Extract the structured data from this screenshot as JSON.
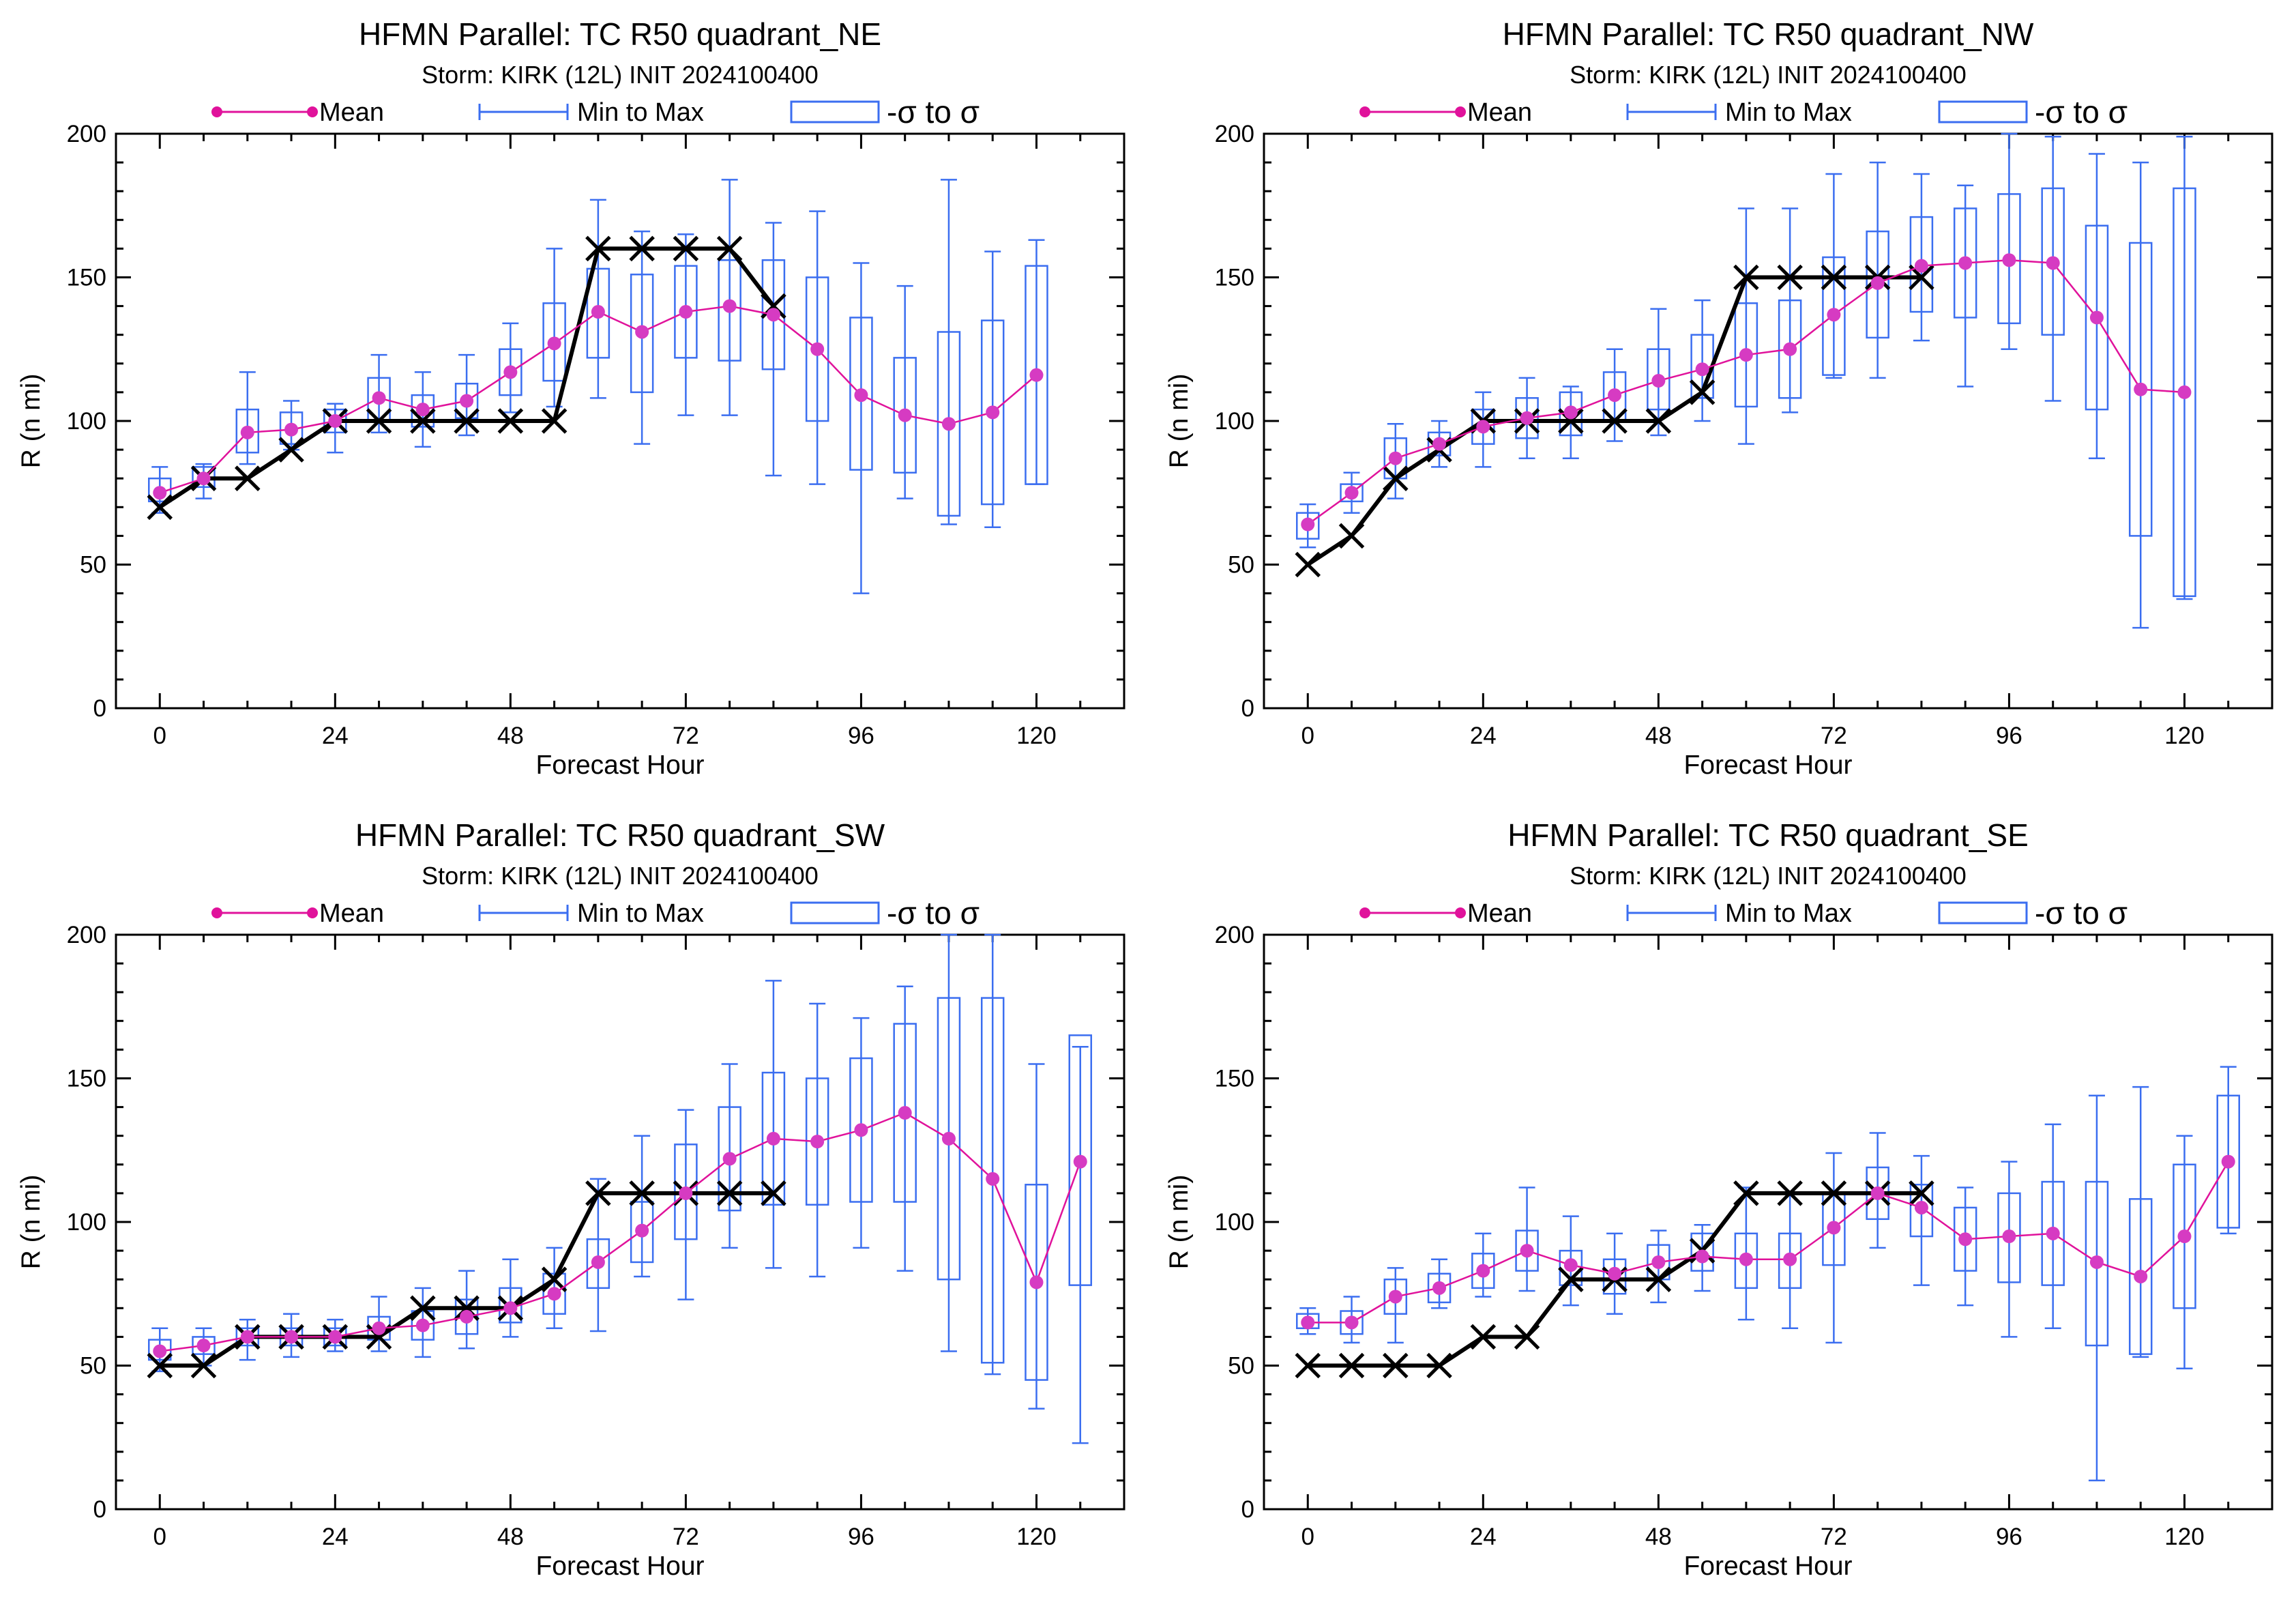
{
  "figure": {
    "legend_labels": {
      "mean": "Mean",
      "minmax": "Min to Max",
      "sigma": "-σ to σ"
    },
    "colors": {
      "mean": "#e0129b",
      "mean_point": "#d63bc2",
      "range": "#3b6ef0",
      "observed": "#000000"
    }
  },
  "chart_data": [
    {
      "type": "line",
      "title": "HFMN Parallel: TC  R50 quadrant_NE",
      "subtitle": "Storm: KIRK (12L) INIT 2024100400",
      "xlabel": "Forecast Hour",
      "ylabel": "R (n mi)",
      "xlim": [
        -6,
        132
      ],
      "ylim": [
        0,
        200
      ],
      "xticks": [
        0,
        24,
        48,
        72,
        96,
        120
      ],
      "yticks": [
        0,
        50,
        100,
        150,
        200
      ],
      "legend": "top",
      "series": [
        {
          "name": "Mean",
          "x": [
            0,
            6,
            12,
            18,
            24,
            30,
            36,
            42,
            48,
            54,
            60,
            66,
            72,
            78,
            84,
            90,
            96,
            102,
            108,
            114,
            120
          ],
          "y": [
            75,
            80,
            96,
            97,
            100,
            108,
            104,
            107,
            117,
            127,
            138,
            131,
            138,
            140,
            137,
            125,
            109,
            102,
            99,
            103,
            116
          ]
        },
        {
          "name": "Min to Max",
          "x": [
            0,
            6,
            12,
            18,
            24,
            30,
            36,
            42,
            48,
            54,
            60,
            66,
            72,
            78,
            84,
            90,
            96,
            102,
            108,
            114,
            120
          ],
          "low": [
            68,
            73,
            85,
            90,
            89,
            96,
            91,
            95,
            103,
            105,
            108,
            92,
            102,
            102,
            81,
            78,
            40,
            73,
            64,
            63,
            78
          ],
          "high": [
            84,
            85,
            117,
            107,
            106,
            123,
            117,
            123,
            134,
            160,
            177,
            166,
            165,
            184,
            169,
            173,
            155,
            147,
            184,
            159,
            163
          ]
        },
        {
          "name": "-σ to σ",
          "x": [
            0,
            6,
            12,
            18,
            24,
            30,
            36,
            42,
            48,
            54,
            60,
            66,
            72,
            78,
            84,
            90,
            96,
            102,
            108,
            114,
            120
          ],
          "low": [
            72,
            77,
            89,
            92,
            96,
            100,
            98,
            101,
            109,
            114,
            122,
            110,
            122,
            121,
            118,
            100,
            83,
            82,
            67,
            71,
            78
          ],
          "high": [
            80,
            84,
            104,
            103,
            104,
            115,
            109,
            113,
            125,
            141,
            153,
            151,
            154,
            156,
            156,
            150,
            136,
            122,
            131,
            135,
            154
          ]
        },
        {
          "name": "",
          "x": [
            0,
            6,
            12,
            18,
            24,
            30,
            36,
            42,
            48,
            54,
            60,
            66,
            72,
            78,
            84
          ],
          "y": [
            70,
            80,
            80,
            90,
            100,
            100,
            100,
            100,
            100,
            100,
            160,
            160,
            160,
            160,
            140
          ]
        }
      ]
    },
    {
      "type": "line",
      "title": "HFMN Parallel: TC  R50 quadrant_NW",
      "subtitle": "Storm: KIRK (12L) INIT 2024100400",
      "xlabel": "Forecast Hour",
      "ylabel": "R (n mi)",
      "xlim": [
        -6,
        132
      ],
      "ylim": [
        0,
        200
      ],
      "xticks": [
        0,
        24,
        48,
        72,
        96,
        120
      ],
      "yticks": [
        0,
        50,
        100,
        150,
        200
      ],
      "legend": "top",
      "series": [
        {
          "name": "Mean",
          "x": [
            0,
            6,
            12,
            18,
            24,
            30,
            36,
            42,
            48,
            54,
            60,
            66,
            72,
            78,
            84,
            90,
            96,
            102,
            108,
            114,
            120
          ],
          "y": [
            64,
            75,
            87,
            92,
            98,
            101,
            103,
            109,
            114,
            118,
            123,
            125,
            137,
            148,
            154,
            155,
            156,
            155,
            136,
            111,
            110
          ]
        },
        {
          "name": "Min to Max",
          "x": [
            0,
            6,
            12,
            18,
            24,
            30,
            36,
            42,
            48,
            54,
            60,
            66,
            72,
            78,
            84,
            90,
            96,
            102,
            108,
            114,
            120
          ],
          "low": [
            56,
            68,
            73,
            84,
            84,
            87,
            87,
            93,
            95,
            100,
            92,
            103,
            115,
            115,
            128,
            112,
            125,
            107,
            87,
            28,
            38
          ]
        },
        {
          "name": "-σ to σ",
          "x": [
            0,
            6,
            12,
            18,
            24,
            30,
            36,
            42,
            48,
            54,
            60,
            66,
            72,
            78,
            84,
            90,
            96,
            102,
            108,
            114,
            120
          ],
          "low": [
            59,
            72,
            80,
            88,
            92,
            94,
            95,
            100,
            104,
            108,
            105,
            108,
            116,
            129,
            138,
            136,
            134,
            130,
            104,
            60,
            39
          ],
          "high": [
            68,
            78,
            94,
            96,
            104,
            108,
            110,
            117,
            125,
            130,
            141,
            142,
            157,
            166,
            171,
            174,
            179,
            181,
            168,
            162,
            181
          ]
        },
        {
          "name": "",
          "x": [
            0,
            6,
            12,
            18,
            24,
            30,
            36,
            42,
            48,
            54,
            60,
            66,
            72,
            78,
            84
          ],
          "y": [
            50,
            60,
            80,
            90,
            100,
            100,
            100,
            100,
            100,
            110,
            150,
            150,
            150,
            150,
            150
          ]
        }
      ],
      "max_values": [
        71,
        82,
        99,
        100,
        110,
        115,
        112,
        125,
        139,
        142,
        174,
        174,
        186,
        190,
        186,
        182,
        200,
        199,
        193,
        190,
        199
      ]
    },
    {
      "type": "line",
      "title": "HFMN Parallel: TC  R50 quadrant_SW",
      "subtitle": "Storm: KIRK (12L) INIT 2024100400",
      "xlabel": "Forecast Hour",
      "ylabel": "R (n mi)",
      "xlim": [
        -6,
        132
      ],
      "ylim": [
        0,
        200
      ],
      "xticks": [
        0,
        24,
        48,
        72,
        96,
        120
      ],
      "yticks": [
        0,
        50,
        100,
        150,
        200
      ],
      "legend": "top",
      "series": [
        {
          "name": "Mean",
          "x": [
            0,
            6,
            12,
            18,
            24,
            30,
            36,
            42,
            48,
            54,
            60,
            66,
            72,
            78,
            84,
            90,
            96,
            102,
            108,
            114,
            120,
            126
          ],
          "y": [
            55,
            57,
            60,
            60,
            60,
            63,
            64,
            67,
            70,
            75,
            86,
            97,
            110,
            122,
            129,
            128,
            132,
            138,
            129,
            115,
            79,
            121
          ]
        },
        {
          "name": "Min to Max",
          "x": [
            0,
            6,
            12,
            18,
            24,
            30,
            36,
            42,
            48,
            54,
            60,
            66,
            72,
            78,
            84,
            90,
            96,
            102,
            108,
            114,
            120,
            126
          ],
          "low": [
            48,
            50,
            52,
            53,
            55,
            55,
            53,
            56,
            60,
            63,
            62,
            81,
            73,
            91,
            84,
            81,
            91,
            83,
            55,
            47,
            35,
            23
          ],
          "high": [
            63,
            63,
            66,
            68,
            66,
            74,
            77,
            83,
            87,
            91,
            115,
            130,
            139,
            155,
            184,
            176,
            171,
            182,
            201,
            201,
            155,
            161
          ]
        },
        {
          "name": "-σ to σ",
          "x": [
            0,
            6,
            12,
            18,
            24,
            30,
            36,
            42,
            48,
            54,
            60,
            66,
            72,
            78,
            84,
            90,
            96,
            102,
            108,
            114,
            120,
            126
          ],
          "low": [
            52,
            54,
            57,
            57,
            57,
            59,
            59,
            61,
            65,
            68,
            77,
            86,
            94,
            104,
            106,
            106,
            107,
            107,
            80,
            51,
            45,
            78
          ],
          "high": [
            59,
            60,
            63,
            63,
            63,
            67,
            69,
            73,
            77,
            82,
            94,
            107,
            127,
            140,
            152,
            150,
            157,
            169,
            178,
            178,
            113,
            165
          ]
        },
        {
          "name": "",
          "x": [
            0,
            6,
            12,
            18,
            24,
            30,
            36,
            42,
            48,
            54,
            60,
            66,
            72,
            78,
            84
          ],
          "y": [
            50,
            50,
            60,
            60,
            60,
            60,
            70,
            70,
            70,
            80,
            110,
            110,
            110,
            110,
            110
          ]
        }
      ]
    },
    {
      "type": "line",
      "title": "HFMN Parallel: TC  R50 quadrant_SE",
      "subtitle": "Storm: KIRK (12L) INIT 2024100400",
      "xlabel": "Forecast Hour",
      "ylabel": "R (n mi)",
      "xlim": [
        -6,
        132
      ],
      "ylim": [
        0,
        200
      ],
      "xticks": [
        0,
        24,
        48,
        72,
        96,
        120
      ],
      "yticks": [
        0,
        50,
        100,
        150,
        200
      ],
      "legend": "top",
      "series": [
        {
          "name": "Mean",
          "x": [
            0,
            6,
            12,
            18,
            24,
            30,
            36,
            42,
            48,
            54,
            60,
            66,
            72,
            78,
            84,
            90,
            96,
            102,
            108,
            114,
            120,
            126
          ],
          "y": [
            65,
            65,
            74,
            77,
            83,
            90,
            85,
            82,
            86,
            88,
            87,
            87,
            98,
            110,
            105,
            94,
            95,
            96,
            86,
            81,
            95,
            121
          ]
        },
        {
          "name": "Min to Max",
          "x": [
            0,
            6,
            12,
            18,
            24,
            30,
            36,
            42,
            48,
            54,
            60,
            66,
            72,
            78,
            84,
            90,
            96,
            102,
            108,
            114,
            120,
            126
          ],
          "low": [
            61,
            58,
            58,
            70,
            74,
            76,
            71,
            68,
            72,
            76,
            66,
            63,
            58,
            91,
            78,
            71,
            60,
            63,
            10,
            53,
            49,
            96
          ],
          "high": [
            70,
            74,
            84,
            87,
            96,
            112,
            102,
            96,
            97,
            99,
            112,
            110,
            124,
            131,
            123,
            112,
            121,
            134,
            144,
            147,
            130,
            154
          ]
        },
        {
          "name": "-σ to σ",
          "x": [
            0,
            6,
            12,
            18,
            24,
            30,
            36,
            42,
            48,
            54,
            60,
            66,
            72,
            78,
            84,
            90,
            96,
            102,
            108,
            114,
            120,
            126
          ],
          "low": [
            63,
            61,
            68,
            72,
            77,
            83,
            78,
            75,
            80,
            83,
            77,
            77,
            85,
            101,
            95,
            83,
            79,
            78,
            57,
            54,
            70,
            98
          ],
          "high": [
            68,
            69,
            80,
            82,
            89,
            97,
            90,
            87,
            92,
            96,
            96,
            96,
            110,
            119,
            113,
            105,
            110,
            114,
            114,
            108,
            120,
            144
          ]
        },
        {
          "name": "",
          "x": [
            0,
            6,
            12,
            18,
            24,
            30,
            36,
            42,
            48,
            54,
            60,
            66,
            72,
            78,
            84
          ],
          "y": [
            50,
            50,
            50,
            50,
            60,
            60,
            80,
            80,
            80,
            90,
            110,
            110,
            110,
            110,
            110
          ]
        }
      ]
    }
  ]
}
